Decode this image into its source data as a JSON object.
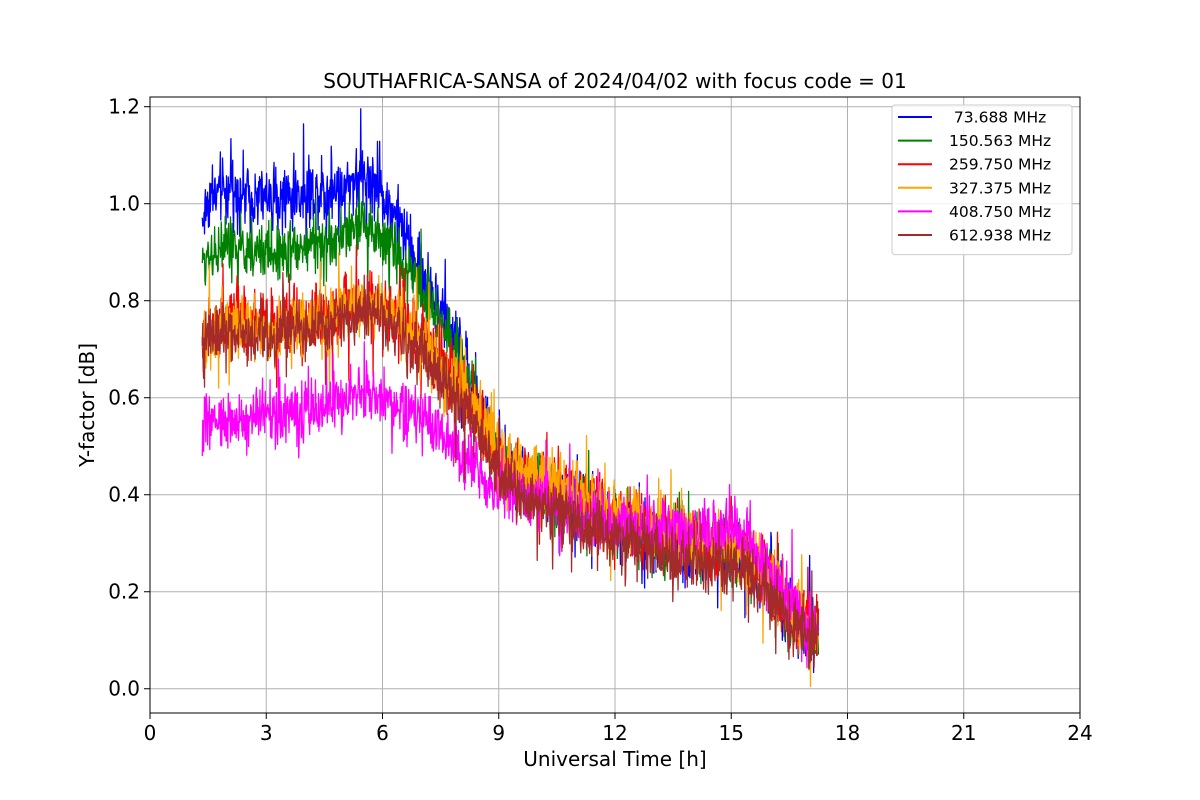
{
  "chart_data": {
    "type": "line",
    "title": "SOUTHAFRICA-SANSA of 2024/04/02 with focus code = 01",
    "xlabel": "Universal Time [h]",
    "ylabel": "Y-factor [dB]",
    "xlim": [
      0,
      24
    ],
    "ylim": [
      -0.05,
      1.22
    ],
    "xticks": [
      0,
      3,
      6,
      9,
      12,
      15,
      18,
      21,
      24
    ],
    "xtick_labels": [
      "0",
      "3",
      "6",
      "9",
      "12",
      "15",
      "18",
      "21",
      "24"
    ],
    "yticks": [
      0.0,
      0.2,
      0.4,
      0.6,
      0.8,
      1.0,
      1.2
    ],
    "ytick_labels": [
      "0.0",
      "0.2",
      "0.4",
      "0.6",
      "0.8",
      "1.0",
      "1.2"
    ],
    "grid": true,
    "legend_position": "top-right",
    "series": [
      {
        "name": " 73.688 MHz",
        "color": "#0000ff",
        "x": [
          1.35,
          1.5,
          2.0,
          3.0,
          4.0,
          4.8,
          5.5,
          6.0,
          6.5,
          7.0,
          7.5,
          8.0,
          8.5,
          9.0,
          9.5,
          10.0,
          11.0,
          12.0,
          13.0,
          14.0,
          15.0,
          15.5,
          16.0,
          16.5,
          17.0,
          17.25
        ],
        "y": [
          0.96,
          1.01,
          1.03,
          1.01,
          1.02,
          1.03,
          1.06,
          1.02,
          0.95,
          0.86,
          0.78,
          0.7,
          0.58,
          0.47,
          0.44,
          0.42,
          0.38,
          0.34,
          0.31,
          0.28,
          0.29,
          0.26,
          0.22,
          0.16,
          0.12,
          0.12
        ],
        "spread": 0.05
      },
      {
        "name": "150.563 MHz",
        "color": "#008000",
        "x": [
          1.35,
          1.5,
          2.0,
          3.0,
          4.0,
          4.8,
          5.5,
          6.0,
          6.5,
          7.0,
          7.5,
          8.0,
          8.5,
          9.0,
          9.5,
          10.0,
          11.0,
          12.0,
          13.0,
          14.0,
          15.0,
          15.5,
          16.0,
          16.5,
          17.0,
          17.25
        ],
        "y": [
          0.87,
          0.9,
          0.91,
          0.9,
          0.91,
          0.93,
          0.96,
          0.93,
          0.88,
          0.82,
          0.76,
          0.69,
          0.58,
          0.47,
          0.44,
          0.42,
          0.38,
          0.34,
          0.31,
          0.28,
          0.29,
          0.26,
          0.22,
          0.16,
          0.12,
          0.12
        ],
        "spread": 0.045
      },
      {
        "name": "259.750 MHz",
        "color": "#ff0000",
        "x": [
          1.35,
          1.5,
          2.0,
          3.0,
          4.0,
          4.8,
          5.5,
          6.0,
          6.5,
          7.0,
          7.5,
          8.0,
          8.5,
          9.0,
          9.5,
          10.0,
          11.0,
          12.0,
          13.0,
          14.0,
          15.0,
          15.5,
          16.0,
          16.5,
          17.0,
          17.25
        ],
        "y": [
          0.72,
          0.74,
          0.75,
          0.75,
          0.76,
          0.78,
          0.8,
          0.79,
          0.76,
          0.72,
          0.68,
          0.62,
          0.56,
          0.48,
          0.45,
          0.43,
          0.39,
          0.35,
          0.33,
          0.3,
          0.3,
          0.27,
          0.23,
          0.17,
          0.13,
          0.13
        ],
        "spread": 0.05
      },
      {
        "name": "327.375 MHz",
        "color": "#ffa500",
        "x": [
          1.35,
          1.5,
          2.0,
          3.0,
          4.0,
          4.8,
          5.5,
          6.0,
          6.5,
          7.0,
          7.5,
          8.0,
          8.5,
          9.0,
          9.5,
          10.0,
          11.0,
          12.0,
          13.0,
          14.0,
          15.0,
          15.5,
          16.0,
          16.5,
          17.0,
          17.25
        ],
        "y": [
          0.7,
          0.73,
          0.74,
          0.74,
          0.75,
          0.77,
          0.79,
          0.78,
          0.75,
          0.71,
          0.67,
          0.62,
          0.56,
          0.49,
          0.46,
          0.44,
          0.4,
          0.36,
          0.34,
          0.31,
          0.3,
          0.27,
          0.23,
          0.17,
          0.13,
          0.13
        ],
        "spread": 0.05
      },
      {
        "name": "408.750 MHz",
        "color": "#ff00ff",
        "x": [
          1.35,
          1.5,
          2.0,
          3.0,
          4.0,
          4.8,
          5.5,
          6.0,
          6.5,
          7.0,
          7.5,
          8.0,
          8.5,
          9.0,
          9.5,
          10.0,
          11.0,
          12.0,
          13.0,
          14.0,
          15.0,
          15.5,
          16.0,
          16.5,
          17.0,
          17.25
        ],
        "y": [
          0.55,
          0.55,
          0.55,
          0.56,
          0.57,
          0.59,
          0.61,
          0.6,
          0.58,
          0.56,
          0.53,
          0.49,
          0.45,
          0.41,
          0.4,
          0.39,
          0.36,
          0.34,
          0.33,
          0.32,
          0.33,
          0.3,
          0.24,
          0.18,
          0.13,
          0.13
        ],
        "spread": 0.045
      },
      {
        "name": "612.938 MHz",
        "color": "#a52a2a",
        "x": [
          1.35,
          1.5,
          2.0,
          3.0,
          4.0,
          4.8,
          5.5,
          6.0,
          6.5,
          7.0,
          7.5,
          8.0,
          8.5,
          9.0,
          9.5,
          10.0,
          11.0,
          12.0,
          13.0,
          14.0,
          15.0,
          15.5,
          16.0,
          16.5,
          17.0,
          17.25
        ],
        "y": [
          0.71,
          0.73,
          0.73,
          0.73,
          0.74,
          0.76,
          0.78,
          0.76,
          0.73,
          0.69,
          0.64,
          0.59,
          0.53,
          0.44,
          0.4,
          0.38,
          0.34,
          0.31,
          0.29,
          0.26,
          0.26,
          0.23,
          0.19,
          0.14,
          0.11,
          0.11
        ],
        "spread": 0.045
      }
    ]
  }
}
